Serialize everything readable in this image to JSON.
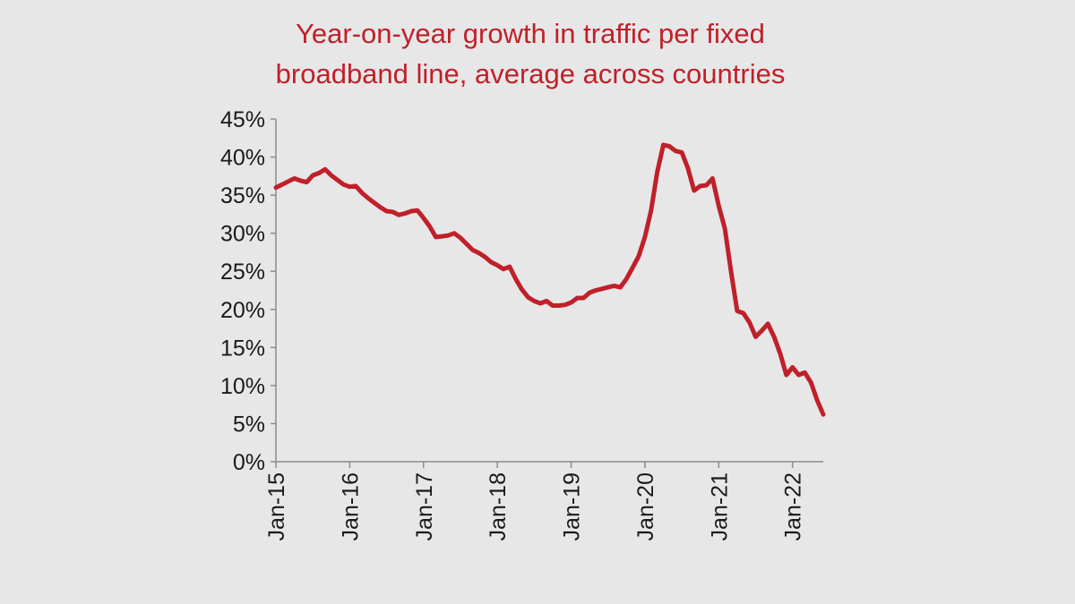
{
  "chart_data": {
    "type": "line",
    "title_lines": [
      "Year-on-year growth in traffic per fixed",
      "broadband line, average across countries"
    ],
    "xlabel": "",
    "ylabel": "",
    "y_ticks": [
      "0%",
      "5%",
      "10%",
      "15%",
      "20%",
      "25%",
      "30%",
      "35%",
      "40%",
      "45%"
    ],
    "ylim": [
      0,
      45
    ],
    "x_ticks": [
      "Jan-15",
      "Jan-16",
      "Jan-17",
      "Jan-18",
      "Jan-19",
      "Jan-20",
      "Jan-21",
      "Jan-22"
    ],
    "x_range": [
      "2015-01",
      "2022-06"
    ],
    "grid": false,
    "legend": "none",
    "series": [
      {
        "color": "#c0202a",
        "points": [
          [
            "2015-01",
            36.0
          ],
          [
            "2015-02",
            36.4
          ],
          [
            "2015-03",
            36.8
          ],
          [
            "2015-04",
            37.2
          ],
          [
            "2015-05",
            36.9
          ],
          [
            "2015-06",
            36.7
          ],
          [
            "2015-07",
            37.6
          ],
          [
            "2015-08",
            37.9
          ],
          [
            "2015-09",
            38.4
          ],
          [
            "2015-10",
            37.6
          ],
          [
            "2015-11",
            37.0
          ],
          [
            "2015-12",
            36.4
          ],
          [
            "2016-01",
            36.1
          ],
          [
            "2016-02",
            36.2
          ],
          [
            "2016-03",
            35.3
          ],
          [
            "2016-04",
            34.6
          ],
          [
            "2016-05",
            34.0
          ],
          [
            "2016-06",
            33.4
          ],
          [
            "2016-07",
            32.9
          ],
          [
            "2016-08",
            32.8
          ],
          [
            "2016-09",
            32.4
          ],
          [
            "2016-10",
            32.6
          ],
          [
            "2016-11",
            32.9
          ],
          [
            "2016-12",
            33.0
          ],
          [
            "2017-01",
            32.0
          ],
          [
            "2017-02",
            30.9
          ],
          [
            "2017-03",
            29.5
          ],
          [
            "2017-04",
            29.6
          ],
          [
            "2017-05",
            29.7
          ],
          [
            "2017-06",
            30.0
          ],
          [
            "2017-07",
            29.4
          ],
          [
            "2017-08",
            28.6
          ],
          [
            "2017-09",
            27.8
          ],
          [
            "2017-10",
            27.4
          ],
          [
            "2017-11",
            26.9
          ],
          [
            "2017-12",
            26.2
          ],
          [
            "2018-01",
            25.8
          ],
          [
            "2018-02",
            25.3
          ],
          [
            "2018-03",
            25.6
          ],
          [
            "2018-04",
            24.0
          ],
          [
            "2018-05",
            22.6
          ],
          [
            "2018-06",
            21.6
          ],
          [
            "2018-07",
            21.1
          ],
          [
            "2018-08",
            20.8
          ],
          [
            "2018-09",
            21.1
          ],
          [
            "2018-10",
            20.5
          ],
          [
            "2018-11",
            20.5
          ],
          [
            "2018-12",
            20.6
          ],
          [
            "2019-01",
            20.9
          ],
          [
            "2019-02",
            21.5
          ],
          [
            "2019-03",
            21.5
          ],
          [
            "2019-04",
            22.2
          ],
          [
            "2019-05",
            22.5
          ],
          [
            "2019-06",
            22.7
          ],
          [
            "2019-07",
            22.9
          ],
          [
            "2019-08",
            23.1
          ],
          [
            "2019-09",
            22.9
          ],
          [
            "2019-10",
            24.0
          ],
          [
            "2019-11",
            25.5
          ],
          [
            "2019-12",
            27.0
          ],
          [
            "2020-01",
            29.5
          ],
          [
            "2020-02",
            33.0
          ],
          [
            "2020-03",
            38.0
          ],
          [
            "2020-04",
            41.6
          ],
          [
            "2020-05",
            41.4
          ],
          [
            "2020-06",
            40.8
          ],
          [
            "2020-07",
            40.6
          ],
          [
            "2020-08",
            38.5
          ],
          [
            "2020-09",
            35.6
          ],
          [
            "2020-10",
            36.2
          ],
          [
            "2020-11",
            36.3
          ],
          [
            "2020-12",
            37.2
          ],
          [
            "2021-01",
            33.6
          ],
          [
            "2021-02",
            30.6
          ],
          [
            "2021-03",
            25.0
          ],
          [
            "2021-04",
            19.8
          ],
          [
            "2021-05",
            19.5
          ],
          [
            "2021-06",
            18.3
          ],
          [
            "2021-07",
            16.4
          ],
          [
            "2021-08",
            17.2
          ],
          [
            "2021-09",
            18.1
          ],
          [
            "2021-10",
            16.4
          ],
          [
            "2021-11",
            14.2
          ],
          [
            "2021-12",
            11.4
          ],
          [
            "2022-01",
            12.4
          ],
          [
            "2022-02",
            11.4
          ],
          [
            "2022-03",
            11.7
          ],
          [
            "2022-04",
            10.4
          ],
          [
            "2022-05",
            8.1
          ],
          [
            "2022-06",
            6.2
          ]
        ]
      }
    ]
  }
}
